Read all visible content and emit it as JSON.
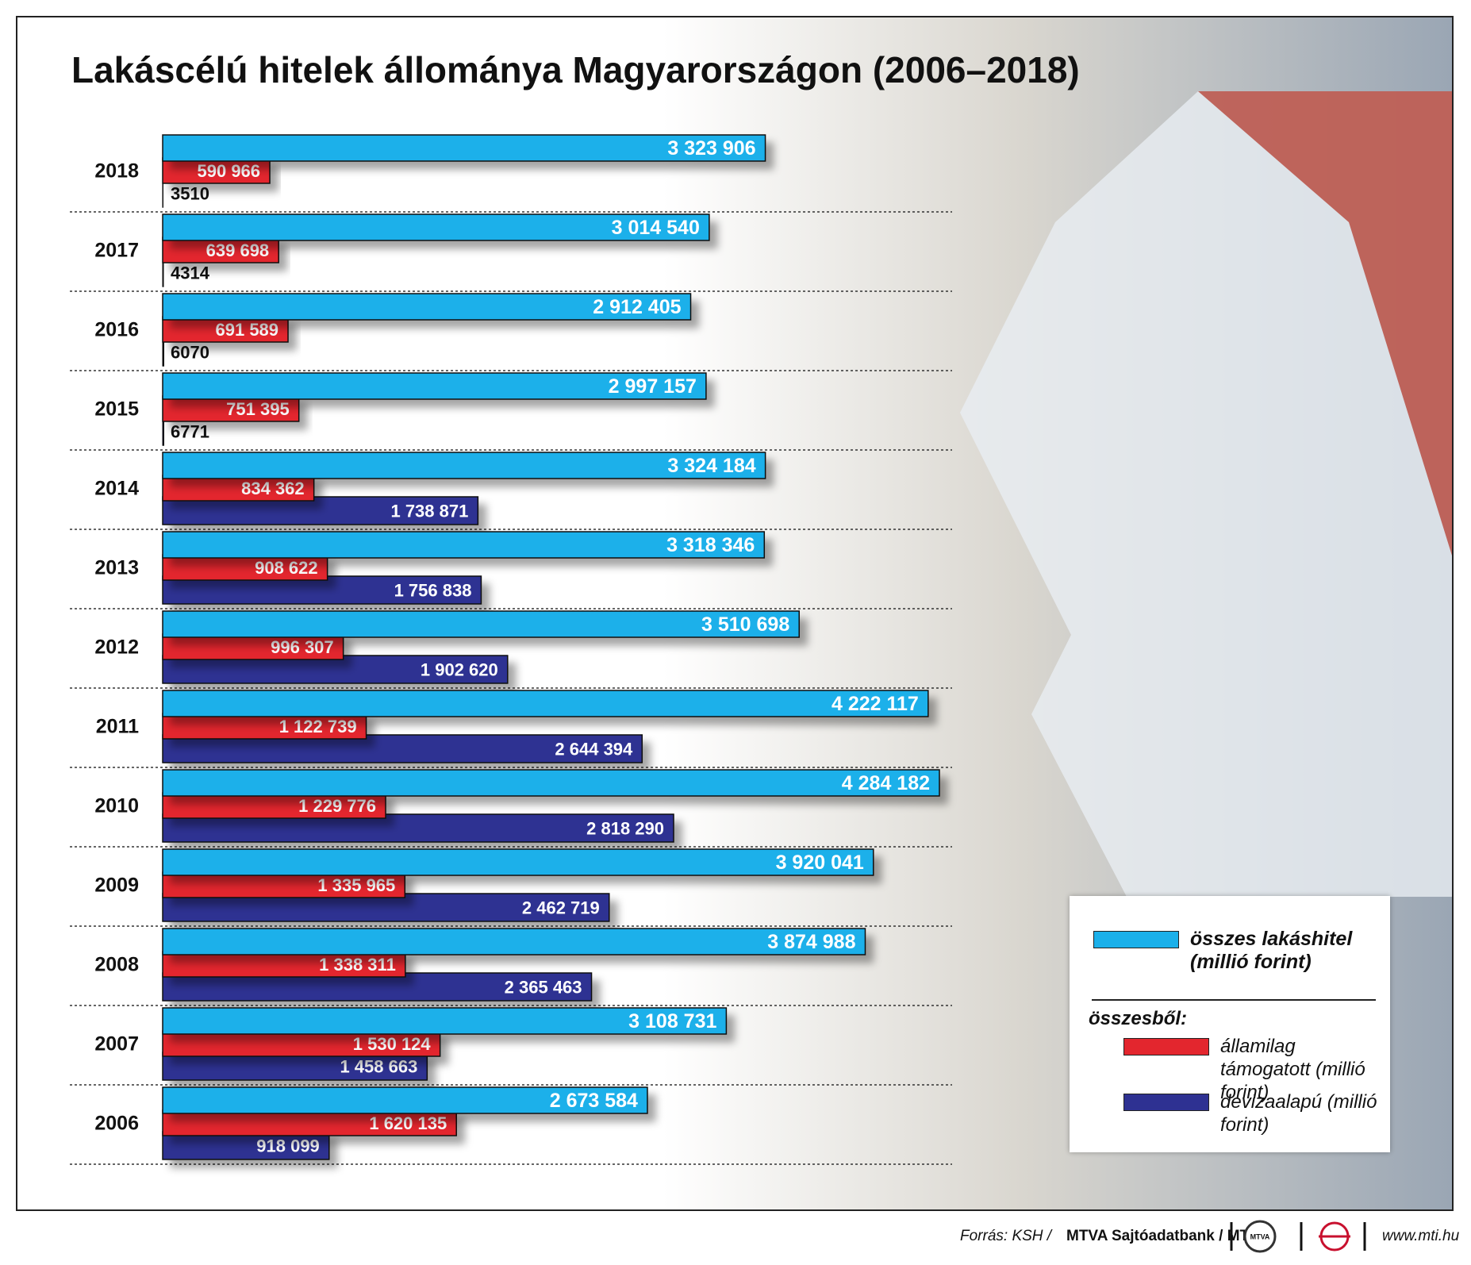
{
  "chart_data": {
    "type": "bar",
    "orientation": "horizontal",
    "title": "Lakáscélú hitelek állománya Magyarországon (2006–2018)",
    "categories": [
      "2018",
      "2017",
      "2016",
      "2015",
      "2014",
      "2013",
      "2012",
      "2011",
      "2010",
      "2009",
      "2008",
      "2007",
      "2006"
    ],
    "series": [
      {
        "name": "összes lakáshitel (millió forint)",
        "color": "#1bb0ea",
        "values": [
          3323906,
          3014540,
          2912405,
          2997157,
          3324184,
          3318346,
          3510698,
          4222117,
          4284182,
          3920041,
          3874988,
          3108731,
          2673584
        ],
        "value_labels": [
          "3 323 906",
          "3 014 540",
          "2 912 405",
          "2 997 157",
          "3 324 184",
          "3 318 346",
          "3 510 698",
          "4 222 117",
          "4 284 182",
          "3 920 041",
          "3 874 988",
          "3 108 731",
          "2 673 584"
        ]
      },
      {
        "name": "államilag támogatott (millió forint)",
        "color": "#e3262e",
        "values": [
          590966,
          639698,
          691589,
          751395,
          834362,
          908622,
          996307,
          1122739,
          1229776,
          1335965,
          1338311,
          1530124,
          1620135
        ],
        "value_labels": [
          "590 966",
          "639 698",
          "691 589",
          "751 395",
          "834 362",
          "908 622",
          "996 307",
          "1 122 739",
          "1 229 776",
          "1 335 965",
          "1 338 311",
          "1 530 124",
          "1 620 135"
        ]
      },
      {
        "name": "devizaalapú (millió forint)",
        "color": "#2e3192",
        "values": [
          3510,
          4314,
          6070,
          6771,
          1738871,
          1756838,
          1902620,
          2644394,
          2818290,
          2462719,
          2365463,
          1458663,
          918099
        ],
        "value_labels": [
          "3510",
          "4314",
          "6070",
          "6771",
          "1 738 871",
          "1 756 838",
          "1 902 620",
          "2 644 394",
          "2 818 290",
          "2 462 719",
          "2 365 463",
          "1 458 663",
          "918 099"
        ]
      }
    ],
    "legend_subtitle": "összesből:",
    "legend": "bottom-right"
  },
  "footer": {
    "source_prefix": "Forrás: KSH /",
    "source_bold": "MTVA Sajtóadatbank / MTI",
    "logo": "MTVA",
    "url": "www.mti.hu"
  }
}
